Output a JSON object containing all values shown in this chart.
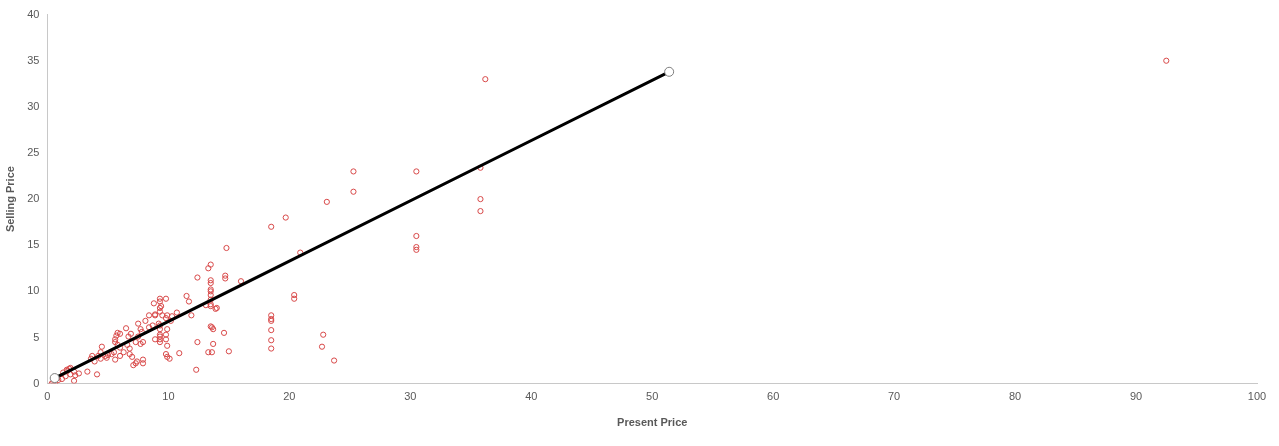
{
  "chart_data": {
    "type": "scatter",
    "xlabel": "Present Price",
    "ylabel": "Selling Price",
    "xlim": [
      0,
      100
    ],
    "xticks": [
      0,
      10,
      20,
      30,
      40,
      50,
      60,
      70,
      80,
      90,
      100
    ],
    "ylim": [
      0,
      40
    ],
    "yticks": [
      0,
      5,
      10,
      15,
      20,
      25,
      30,
      35,
      40
    ],
    "legend": false,
    "marker": "circle",
    "series": [
      {
        "color": "#d94a4a",
        "x": [
          92.5,
          36.2,
          35.8,
          35.8,
          35.8,
          30.5,
          30.5,
          30.5,
          30.5,
          25.3,
          25.3,
          23.1,
          19.7,
          20.9,
          20.4,
          20.4,
          22.8,
          22.7,
          23.7,
          18.5,
          18.5,
          18.5,
          18.5,
          18.5,
          18.5,
          18.5,
          14.8,
          13.5,
          13.3,
          12.4,
          14.7,
          14.7,
          16.0,
          13.5,
          13.5,
          13.5,
          13.5,
          13.5,
          13.5,
          13.5,
          13.5,
          13.1,
          14.0,
          11.5,
          11.7,
          11.9,
          10.7,
          10.3,
          9.8,
          9.3,
          9.3,
          8.8,
          9.3,
          9.3,
          9.9,
          9.5,
          8.9,
          8.4,
          8.7,
          9.3,
          9.8,
          10.2,
          9.3,
          9.9,
          9.3,
          9.3,
          9.3,
          9.3,
          8.9,
          9.8,
          9.8,
          9.9,
          9.8,
          9.9,
          10.1,
          10.9,
          13.5,
          13.7,
          12.4,
          13.7,
          14.6,
          15.0,
          13.3,
          13.6,
          12.3,
          0.35,
          0.5,
          0.65,
          0.9,
          1.2,
          1.5,
          1.65,
          1.8,
          1.9,
          1.6,
          1.3,
          1.9,
          2.2,
          2.3,
          2.6,
          2.2,
          3.3,
          3.6,
          3.7,
          3.9,
          4.1,
          4.2,
          4.4,
          4.5,
          4.4,
          4.8,
          4.9,
          5.0,
          5.3,
          5.5,
          5.6,
          5.7,
          5.8,
          5.6,
          5.6,
          6.0,
          5.8,
          6.0,
          6.0,
          6.3,
          6.5,
          6.7,
          6.9,
          6.6,
          6.8,
          6.8,
          7.0,
          7.1,
          7.3,
          7.4,
          7.5,
          7.7,
          7.8,
          7.5,
          7.3,
          7.7,
          7.9,
          7.9,
          7.9,
          8.1,
          8.4,
          8.9,
          9.4,
          9.2,
          13.9,
          13.6
        ],
        "values": [
          35.0,
          33.0,
          23.4,
          20.0,
          18.7,
          23.0,
          16.0,
          14.8,
          14.5,
          23.0,
          20.8,
          19.7,
          18.0,
          14.2,
          9.6,
          9.2,
          5.3,
          4.0,
          2.5,
          17.0,
          7.4,
          7.0,
          6.8,
          5.8,
          4.7,
          3.8,
          14.7,
          12.9,
          12.5,
          11.5,
          11.7,
          11.4,
          11.1,
          11.2,
          10.9,
          10.2,
          10.0,
          9.6,
          9.1,
          8.6,
          8.4,
          8.5,
          8.2,
          9.5,
          8.9,
          7.4,
          7.7,
          7.3,
          9.2,
          9.2,
          8.9,
          8.7,
          8.2,
          7.8,
          7.4,
          7.4,
          7.4,
          7.4,
          6.3,
          6.3,
          7.1,
          6.8,
          5.9,
          5.9,
          5.3,
          5.1,
          4.8,
          4.5,
          4.8,
          5.3,
          4.8,
          4.1,
          3.2,
          2.9,
          2.7,
          3.3,
          6.2,
          5.9,
          4.5,
          4.3,
          5.5,
          3.5,
          3.4,
          3.4,
          1.5,
          0.0,
          0.1,
          0.1,
          0.4,
          0.5,
          0.8,
          1.4,
          1.6,
          1.7,
          1.5,
          1.2,
          1.0,
          1.3,
          0.9,
          1.1,
          0.3,
          1.3,
          2.7,
          3.0,
          2.4,
          1.0,
          3.0,
          3.4,
          4.0,
          2.7,
          3.0,
          2.8,
          3.1,
          3.2,
          3.4,
          2.6,
          5.2,
          5.5,
          4.8,
          4.5,
          5.4,
          4.2,
          3.9,
          3.0,
          3.4,
          6.0,
          5.1,
          5.4,
          4.2,
          3.8,
          3.2,
          2.9,
          2.0,
          2.2,
          2.4,
          6.5,
          5.9,
          5.6,
          5.1,
          4.5,
          4.3,
          4.5,
          2.6,
          2.2,
          6.8,
          6.1,
          7.5,
          8.4,
          6.5,
          8.1,
          6.1
        ]
      },
      {
        "type": "line",
        "color": "#000000",
        "x": [
          0.6,
          51.4
        ],
        "values": [
          0.6,
          33.8
        ]
      }
    ]
  }
}
